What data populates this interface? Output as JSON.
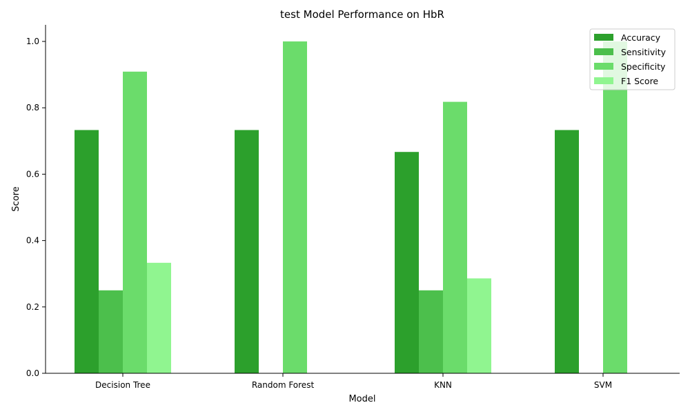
{
  "chart_data": {
    "type": "bar",
    "title": "test Model Performance on HbR",
    "xlabel": "Model",
    "ylabel": "Score",
    "categories": [
      "Decision Tree",
      "Random Forest",
      "KNN",
      "SVM"
    ],
    "ylim": [
      0,
      1.05
    ],
    "yticks": [
      "0.0",
      "0.2",
      "0.4",
      "0.6",
      "0.8",
      "1.0"
    ],
    "grid": false,
    "legend_position": "top-right",
    "series": [
      {
        "name": "Accuracy",
        "color": "#2ca02c",
        "values": [
          0.733,
          0.733,
          0.667,
          0.733
        ]
      },
      {
        "name": "Sensitivity",
        "color": "#4cbf4c",
        "values": [
          0.25,
          0.0,
          0.25,
          0.0
        ]
      },
      {
        "name": "Specificity",
        "color": "#6bdc6b",
        "values": [
          0.909,
          1.0,
          0.818,
          1.0
        ]
      },
      {
        "name": "F1 Score",
        "color": "#90f590",
        "values": [
          0.333,
          0.0,
          0.286,
          0.0
        ]
      }
    ]
  }
}
